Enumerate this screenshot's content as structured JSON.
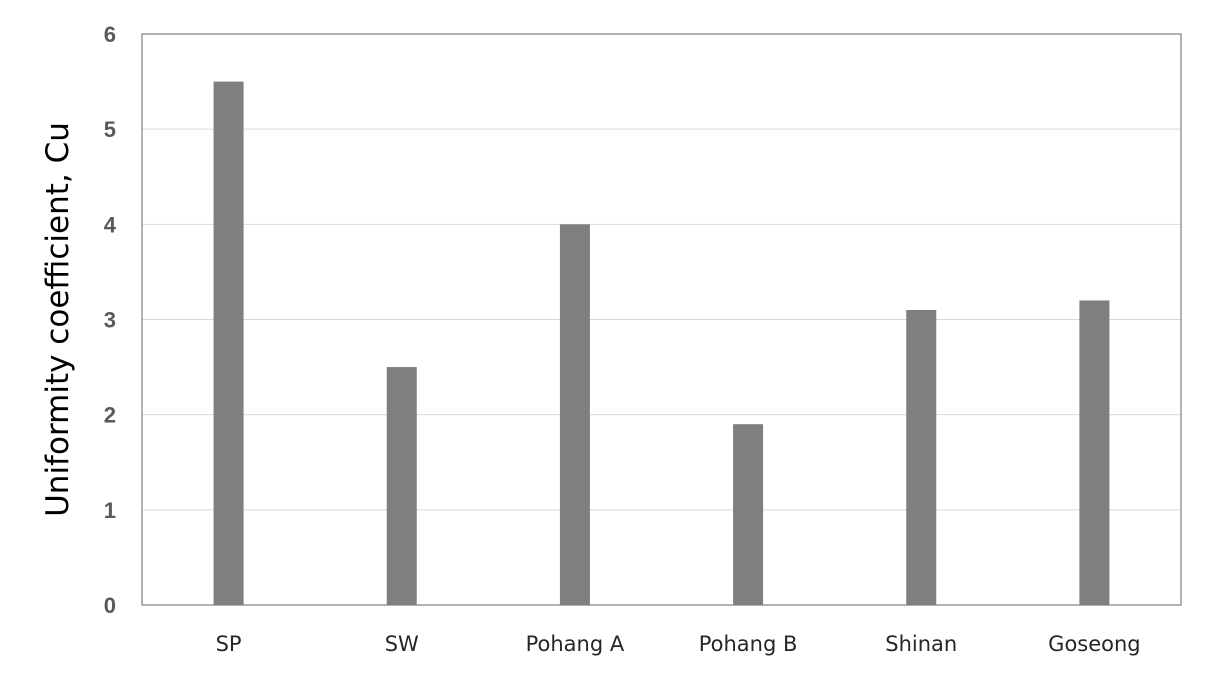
{
  "chart_data": {
    "type": "bar",
    "title": "",
    "xlabel": "",
    "ylabel": "Uniformity coefficient, Cu",
    "categories": [
      "SP",
      "SW",
      "Pohang A",
      "Pohang B",
      "Shinan",
      "Goseong"
    ],
    "values": [
      5.5,
      2.5,
      4.0,
      1.9,
      3.1,
      3.2
    ],
    "ylim": [
      0,
      6
    ],
    "yticks": [
      "0",
      "1",
      "2",
      "3",
      "4",
      "5",
      "6"
    ],
    "grid": true,
    "legend": "none",
    "colors": {
      "bar": "#7f7f7f",
      "grid": "#d9d9d9",
      "frame": "#7f7f7f"
    }
  }
}
